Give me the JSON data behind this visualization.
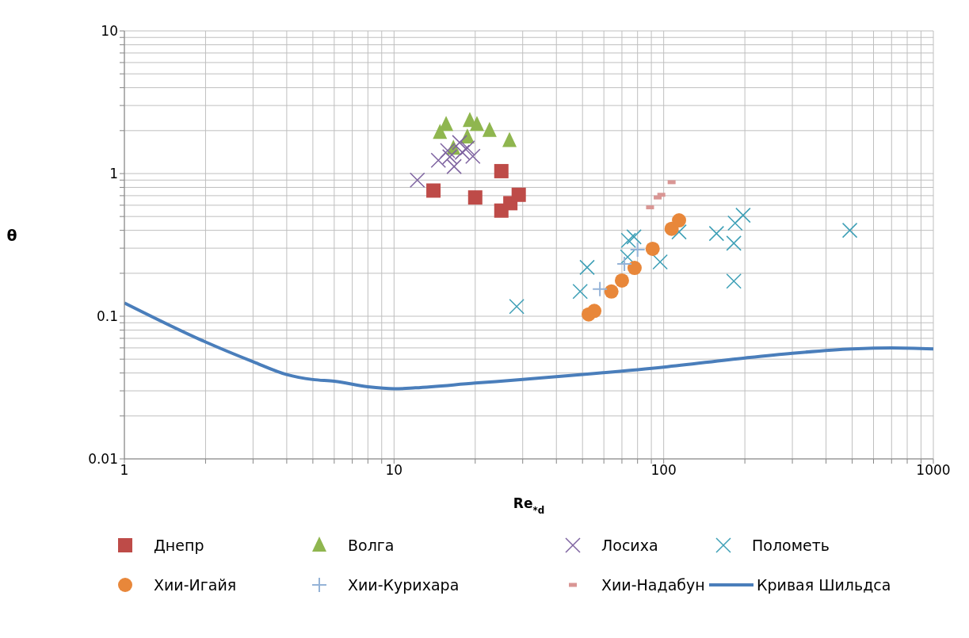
{
  "chart_data": {
    "type": "scatter",
    "xlabel": "Re$_{*d}$",
    "ylabel": "θ",
    "log": "xy",
    "grid": true,
    "legend": "bottom",
    "xlim": [
      1,
      1000
    ],
    "ylim": [
      0.01,
      10
    ],
    "xticks": [
      1,
      {
        "value": 2,
        "label": null
      },
      {
        "value": 3,
        "label": null
      },
      {
        "value": 4,
        "label": null
      },
      {
        "value": 5,
        "label": null
      },
      {
        "value": 6,
        "label": null
      },
      {
        "value": 7,
        "label": null
      },
      {
        "value": 8,
        "label": null
      },
      {
        "value": 9,
        "label": null
      },
      10,
      {
        "value": 20,
        "label": null
      },
      {
        "value": 30,
        "label": null
      },
      {
        "value": 40,
        "label": null
      },
      {
        "value": 50,
        "label": null
      },
      {
        "value": 60,
        "label": null
      },
      {
        "value": 70,
        "label": null
      },
      {
        "value": 80,
        "label": null
      },
      {
        "value": 90,
        "label": null
      },
      100,
      {
        "value": 200,
        "label": null
      },
      {
        "value": 300,
        "label": null
      },
      {
        "value": 400,
        "label": null
      },
      {
        "value": 500,
        "label": null
      },
      {
        "value": 600,
        "label": null
      },
      {
        "value": 700,
        "label": null
      },
      {
        "value": 800,
        "label": null
      },
      {
        "value": 900,
        "label": null
      },
      1000
    ],
    "yticks": [
      0.01,
      {
        "value": 0.02,
        "label": null
      },
      {
        "value": 0.03,
        "label": null
      },
      {
        "value": 0.04,
        "label": null
      },
      {
        "value": 0.05,
        "label": null
      },
      {
        "value": 0.06,
        "label": null
      },
      {
        "value": 0.07,
        "label": null
      },
      {
        "value": 0.08,
        "label": null
      },
      {
        "value": 0.09,
        "label": null
      },
      0.1,
      {
        "value": 0.2,
        "label": null
      },
      {
        "value": 0.3,
        "label": null
      },
      {
        "value": 0.4,
        "label": null
      },
      {
        "value": 0.5,
        "label": null
      },
      {
        "value": 0.6,
        "label": null
      },
      {
        "value": 0.7,
        "label": null
      },
      {
        "value": 0.8,
        "label": null
      },
      {
        "value": 0.9,
        "label": null
      },
      1,
      {
        "value": 2,
        "label": null
      },
      {
        "value": 3,
        "label": null
      },
      {
        "value": 4,
        "label": null
      },
      {
        "value": 5,
        "label": null
      },
      {
        "value": 6,
        "label": null
      },
      {
        "value": 7,
        "label": null
      },
      {
        "value": 8,
        "label": null
      },
      {
        "value": 9,
        "label": null
      },
      10
    ],
    "series": [
      {
        "name": "Днепр",
        "color": "#be4b48",
        "marker": "square",
        "x": [
          14,
          20,
          25,
          25,
          27,
          28,
          29
        ],
        "values": [
          0.76,
          0.68,
          1.04,
          0.55,
          0.62,
          null,
          0.71
        ]
      },
      {
        "name": "Волга",
        "color": "#8fb64f",
        "marker": "triangle",
        "x": [
          14.8,
          15.6,
          16.6,
          18.7,
          19.1,
          20.3,
          22.6,
          26.8
        ],
        "values": [
          1.94,
          2.2,
          1.5,
          1.8,
          2.35,
          2.2,
          2.0,
          1.7
        ]
      },
      {
        "name": "Лосиха",
        "color": "#7e63a0",
        "marker": "cross",
        "x": [
          12.2,
          14.6,
          15.8,
          16.1,
          16.7,
          17.5,
          17.9,
          18.7,
          19.6
        ],
        "values": [
          0.9,
          1.24,
          1.45,
          1.31,
          1.12,
          1.65,
          1.41,
          1.51,
          1.32
        ]
      },
      {
        "name": "Полометь",
        "color": "#3d9fb6",
        "marker": "cross",
        "x": [
          28.5,
          49,
          52,
          73.5,
          74,
          77.6,
          97,
          114,
          157,
          182,
          182,
          184,
          197,
          490
        ],
        "values": [
          0.117,
          0.149,
          0.22,
          0.26,
          0.34,
          0.36,
          0.24,
          0.39,
          0.38,
          0.325,
          0.176,
          0.45,
          0.51,
          0.4
        ]
      },
      {
        "name": "Хии-Игайя",
        "color": "#e8873a",
        "marker": "circle",
        "x": [
          52.7,
          55.3,
          64,
          70,
          78,
          91,
          107,
          114
        ],
        "values": [
          0.103,
          0.109,
          0.149,
          0.178,
          0.218,
          0.297,
          0.41,
          0.47
        ]
      },
      {
        "name": "Хии-Курихара",
        "color": "#95b3d7",
        "marker": "plus",
        "x": [
          58,
          71.5,
          80
        ],
        "values": [
          0.155,
          0.233,
          0.293
        ]
      },
      {
        "name": "Хии-Надабун",
        "color": "#d99694",
        "x": [
          89,
          95,
          98,
          107
        ],
        "values": [
          0.58,
          0.68,
          0.71,
          0.87
        ]
      },
      {
        "name": "Кривая Шильдса",
        "type": "line",
        "color": "#4a7ebb",
        "marker": "none",
        "x": [
          1,
          2,
          3,
          4,
          5,
          6,
          8,
          10,
          12,
          20,
          30,
          50,
          100,
          200,
          300,
          500,
          700,
          1000
        ],
        "values": [
          0.124,
          0.066,
          0.048,
          0.039,
          0.036,
          0.035,
          0.032,
          0.031,
          0.0315,
          0.034,
          0.036,
          0.039,
          0.044,
          0.051,
          0.055,
          0.059,
          0.06,
          0.059
        ]
      }
    ]
  }
}
